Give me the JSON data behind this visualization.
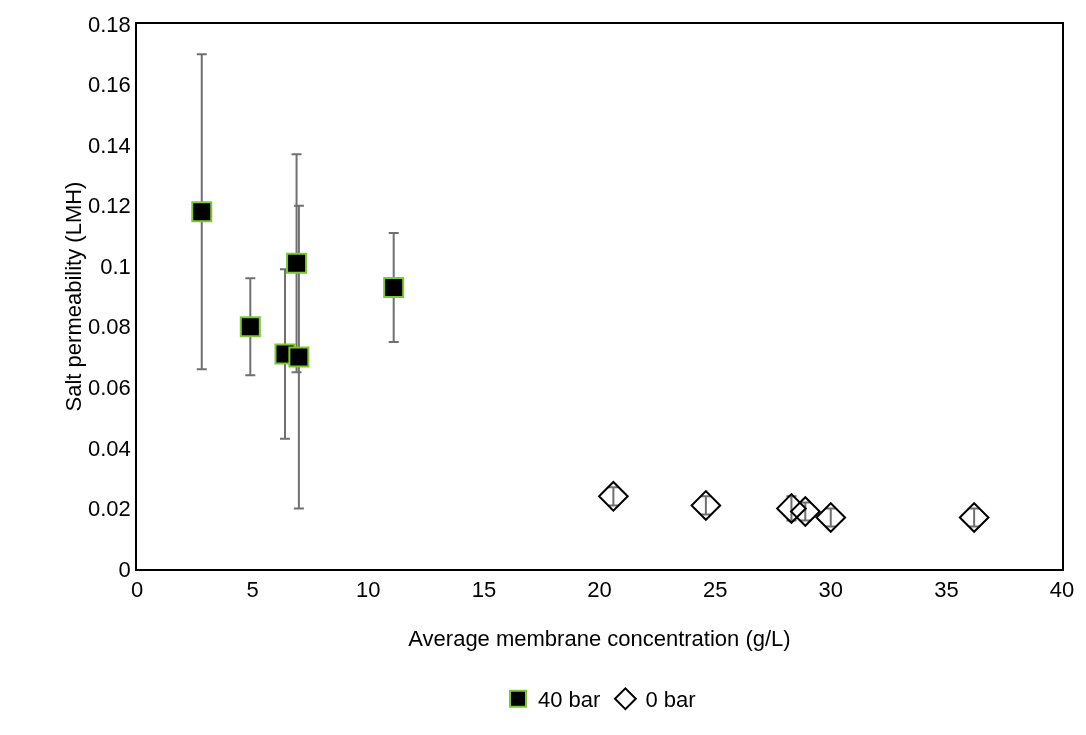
{
  "chart_data": {
    "type": "scatter",
    "xlabel": "Average membrane concentration (g/L)",
    "ylabel": "Salt permeability (LMH)",
    "xlim": [
      0,
      40
    ],
    "xticks": [
      0,
      5,
      10,
      15,
      20,
      25,
      30,
      35,
      40
    ],
    "ylim": [
      0,
      0.18
    ],
    "yticks": [
      0,
      0.02,
      0.04,
      0.06,
      0.08,
      0.1,
      0.12,
      0.14,
      0.16,
      0.18
    ],
    "grid": false,
    "legend": "bottom",
    "series": [
      {
        "name": "40 bar",
        "color": "#000000",
        "marker": "square",
        "x": [
          2.8,
          4.9,
          6.4,
          6.9,
          7.0,
          11.1
        ],
        "values": [
          0.118,
          0.08,
          0.071,
          0.101,
          0.07,
          0.093
        ],
        "errors": [
          0.052,
          0.016,
          0.028,
          0.036,
          0.05,
          0.018
        ]
      },
      {
        "name": "0 bar",
        "color": "#000000",
        "marker": "diamond",
        "x": [
          20.6,
          24.6,
          28.3,
          28.9,
          30.0,
          36.2
        ],
        "values": [
          0.024,
          0.021,
          0.02,
          0.019,
          0.017,
          0.017
        ],
        "errors": [
          0.003,
          0.003,
          0.004,
          0.003,
          0.003,
          0.003
        ]
      }
    ]
  }
}
